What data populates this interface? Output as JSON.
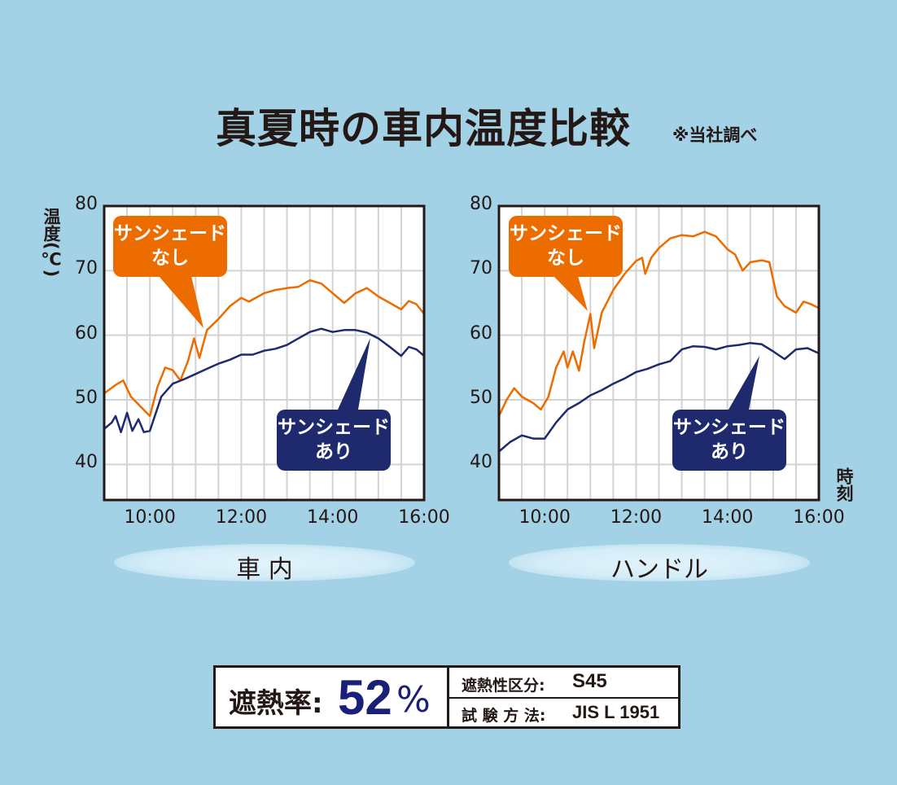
{
  "title": "真夏時の車内温度比較",
  "note": "※当社調べ",
  "y_axis_label": "温度(℃)",
  "x_axis_label": "時刻",
  "colors": {
    "no_shade": "#ec6c00",
    "with_shade": "#1f2a6e",
    "background": "#a3d1e6"
  },
  "chart_data": [
    {
      "type": "line",
      "title": "車 内",
      "xlabel": "時刻",
      "ylabel": "温度(℃)",
      "xlim": [
        "9:00",
        "16:00"
      ],
      "ylim": [
        34.5,
        80
      ],
      "xticks": [
        "10:00",
        "12:00",
        "14:00",
        "16:00"
      ],
      "yticks": [
        40,
        50,
        60,
        70,
        80
      ],
      "grid": true,
      "series": [
        {
          "name": "サンシェードなし",
          "label_line1": "サンシェード",
          "label_line2": "なし",
          "points": [
            [
              "9:00",
              51
            ],
            [
              "9:15",
              52.3
            ],
            [
              "9:25",
              53
            ],
            [
              "9:35",
              50.5
            ],
            [
              "9:45",
              49.3
            ],
            [
              "10:00",
              47.5
            ],
            [
              "10:10",
              52
            ],
            [
              "10:20",
              55
            ],
            [
              "10:30",
              54.6
            ],
            [
              "10:40",
              53
            ],
            [
              "10:50",
              56
            ],
            [
              "10:58",
              59.5
            ],
            [
              "11:05",
              56.5
            ],
            [
              "11:15",
              60.8
            ],
            [
              "11:30",
              62.5
            ],
            [
              "11:45",
              64.5
            ],
            [
              "12:00",
              65.8
            ],
            [
              "12:10",
              65.2
            ],
            [
              "12:30",
              66.5
            ],
            [
              "12:45",
              67
            ],
            [
              "13:00",
              67.3
            ],
            [
              "13:15",
              67.5
            ],
            [
              "13:30",
              68.5
            ],
            [
              "13:45",
              68
            ],
            [
              "14:00",
              66.5
            ],
            [
              "14:15",
              65
            ],
            [
              "14:30",
              66.5
            ],
            [
              "14:45",
              67.3
            ],
            [
              "15:00",
              66
            ],
            [
              "15:15",
              65
            ],
            [
              "15:30",
              64
            ],
            [
              "15:40",
              65.3
            ],
            [
              "15:50",
              64.8
            ],
            [
              "16:00",
              63.3
            ]
          ]
        },
        {
          "name": "サンシェードあり",
          "label_line1": "サンシェード",
          "label_line2": "あり",
          "points": [
            [
              "9:00",
              45.5
            ],
            [
              "9:10",
              46.5
            ],
            [
              "9:15",
              47.5
            ],
            [
              "9:22",
              45
            ],
            [
              "9:30",
              48
            ],
            [
              "9:37",
              45.2
            ],
            [
              "9:45",
              47
            ],
            [
              "9:52",
              45
            ],
            [
              "10:00",
              45.2
            ],
            [
              "10:15",
              50.5
            ],
            [
              "10:30",
              52.5
            ],
            [
              "10:45",
              53.2
            ],
            [
              "11:00",
              54
            ],
            [
              "11:15",
              54.8
            ],
            [
              "11:30",
              55.6
            ],
            [
              "11:45",
              56.2
            ],
            [
              "12:00",
              57
            ],
            [
              "12:15",
              57
            ],
            [
              "12:30",
              57.6
            ],
            [
              "12:45",
              57.9
            ],
            [
              "13:00",
              58.5
            ],
            [
              "13:15",
              59.5
            ],
            [
              "13:30",
              60.5
            ],
            [
              "13:45",
              61
            ],
            [
              "14:00",
              60.5
            ],
            [
              "14:15",
              60.8
            ],
            [
              "14:30",
              60.8
            ],
            [
              "14:45",
              60.4
            ],
            [
              "15:00",
              59.5
            ],
            [
              "15:15",
              58.2
            ],
            [
              "15:30",
              56.8
            ],
            [
              "15:40",
              58.2
            ],
            [
              "15:50",
              57.8
            ],
            [
              "16:00",
              56.8
            ]
          ]
        }
      ]
    },
    {
      "type": "line",
      "title": "ハンドル",
      "xlabel": "時刻",
      "ylabel": "温度(℃)",
      "xlim": [
        "9:00",
        "16:00"
      ],
      "ylim": [
        34.5,
        80
      ],
      "xticks": [
        "10:00",
        "12:00",
        "14:00",
        "16:00"
      ],
      "yticks": [
        40,
        50,
        60,
        70,
        80
      ],
      "grid": true,
      "series": [
        {
          "name": "サンシェードなし",
          "label_line1": "サンシェード",
          "label_line2": "なし",
          "points": [
            [
              "9:00",
              47.5
            ],
            [
              "9:10",
              50
            ],
            [
              "9:20",
              51.8
            ],
            [
              "9:30",
              50.5
            ],
            [
              "9:45",
              49.5
            ],
            [
              "9:55",
              48.5
            ],
            [
              "10:05",
              50.5
            ],
            [
              "10:15",
              55
            ],
            [
              "10:25",
              57.5
            ],
            [
              "10:30",
              55
            ],
            [
              "10:37",
              57.5
            ],
            [
              "10:45",
              54.5
            ],
            [
              "10:52",
              59
            ],
            [
              "11:00",
              63.3
            ],
            [
              "11:05",
              58
            ],
            [
              "11:15",
              63.5
            ],
            [
              "11:30",
              67
            ],
            [
              "11:45",
              69.5
            ],
            [
              "12:00",
              71.5
            ],
            [
              "12:08",
              72
            ],
            [
              "12:12",
              69.5
            ],
            [
              "12:20",
              72
            ],
            [
              "12:30",
              73.5
            ],
            [
              "12:45",
              75
            ],
            [
              "13:00",
              75.5
            ],
            [
              "13:15",
              75.3
            ],
            [
              "13:30",
              76
            ],
            [
              "13:45",
              75.3
            ],
            [
              "14:00",
              73.3
            ],
            [
              "14:10",
              72.5
            ],
            [
              "14:20",
              70
            ],
            [
              "14:30",
              71.3
            ],
            [
              "14:45",
              71.6
            ],
            [
              "14:55",
              71.3
            ],
            [
              "15:05",
              66
            ],
            [
              "15:15",
              64.5
            ],
            [
              "15:30",
              63.5
            ],
            [
              "15:40",
              65.2
            ],
            [
              "15:50",
              64.8
            ],
            [
              "16:00",
              64.2
            ]
          ]
        },
        {
          "name": "サンシェードあり",
          "label_line1": "サンシェード",
          "label_line2": "あり",
          "points": [
            [
              "9:00",
              42
            ],
            [
              "9:15",
              43.5
            ],
            [
              "9:30",
              44.5
            ],
            [
              "9:45",
              44
            ],
            [
              "10:00",
              44
            ],
            [
              "10:15",
              46.5
            ],
            [
              "10:30",
              48.5
            ],
            [
              "10:45",
              49.5
            ],
            [
              "11:00",
              50.7
            ],
            [
              "11:15",
              51.5
            ],
            [
              "11:30",
              52.5
            ],
            [
              "11:45",
              53.3
            ],
            [
              "12:00",
              54.3
            ],
            [
              "12:15",
              54.8
            ],
            [
              "12:30",
              55.5
            ],
            [
              "12:45",
              56
            ],
            [
              "13:00",
              57.8
            ],
            [
              "13:15",
              58.3
            ],
            [
              "13:30",
              58.2
            ],
            [
              "13:45",
              57.8
            ],
            [
              "14:00",
              58.3
            ],
            [
              "14:15",
              58.5
            ],
            [
              "14:30",
              58.8
            ],
            [
              "14:45",
              58.6
            ],
            [
              "15:00",
              57.5
            ],
            [
              "15:15",
              56.3
            ],
            [
              "15:30",
              57.8
            ],
            [
              "15:45",
              58
            ],
            [
              "16:00",
              57.2
            ]
          ]
        }
      ]
    }
  ],
  "summary": {
    "rate_label": "遮熱率:",
    "rate_value": "52",
    "rate_unit": "%",
    "class_label": "遮熱性区分:",
    "class_value": "S45",
    "method_label": "試 験 方 法:",
    "method_value": "JIS L 1951"
  }
}
